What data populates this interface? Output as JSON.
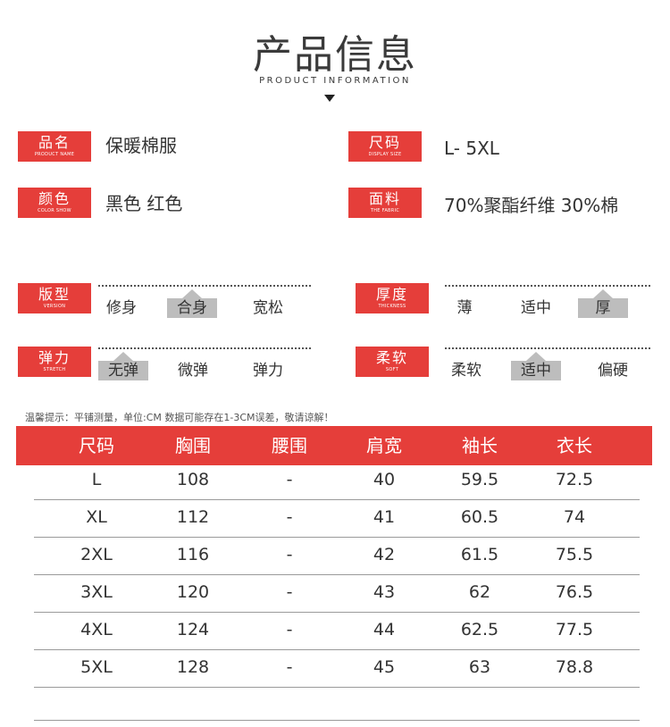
{
  "header": {
    "title": "产品信息",
    "subtitle": "PRODUCT INFORMATION"
  },
  "info": [
    {
      "label": "品名",
      "label_en": "PRODUCT NAME",
      "value": "保暖棉服"
    },
    {
      "label": "尺码",
      "label_en": "DISPLAY SIZE",
      "value": "L- 5XL"
    },
    {
      "label": "颜色",
      "label_en": "COLOR SHOW",
      "value": "黑色 红色"
    },
    {
      "label": "面料",
      "label_en": "THE FABRIC",
      "value": "70%聚酯纤维 30%棉"
    }
  ],
  "scales": [
    {
      "label": "版型",
      "label_en": "VERSION",
      "options": [
        "修身",
        "合身",
        "宽松"
      ],
      "selected": 1
    },
    {
      "label": "厚度",
      "label_en": "THICKNESS",
      "options": [
        "薄",
        "适中",
        "厚"
      ],
      "selected": 2
    },
    {
      "label": "弹力",
      "label_en": "STRETCH",
      "options": [
        "无弹",
        "微弹",
        "弹力"
      ],
      "selected": 0
    },
    {
      "label": "柔软",
      "label_en": "SOFT",
      "options": [
        "柔软",
        "适中",
        "偏硬"
      ],
      "selected": 1
    }
  ],
  "tip": "温馨提示：平铺测量，单位:CM 数据可能存在1-3CM误差，敬请谅解！",
  "colors": {
    "accent": "#e53e3a",
    "selected_bg": "#bdbdbd"
  },
  "table": {
    "headers": [
      "尺码",
      "胸围",
      "腰围",
      "肩宽",
      "袖长",
      "衣长"
    ],
    "rows": [
      [
        "L",
        "108",
        "-",
        "40",
        "59.5",
        "72.5"
      ],
      [
        "XL",
        "112",
        "-",
        "41",
        "60.5",
        "74"
      ],
      [
        "2XL",
        "116",
        "-",
        "42",
        "61.5",
        "75.5"
      ],
      [
        "3XL",
        "120",
        "-",
        "43",
        "62",
        "76.5"
      ],
      [
        "4XL",
        "124",
        "-",
        "44",
        "62.5",
        "77.5"
      ],
      [
        "5XL",
        "128",
        "-",
        "45",
        "63",
        "78.8"
      ]
    ]
  }
}
